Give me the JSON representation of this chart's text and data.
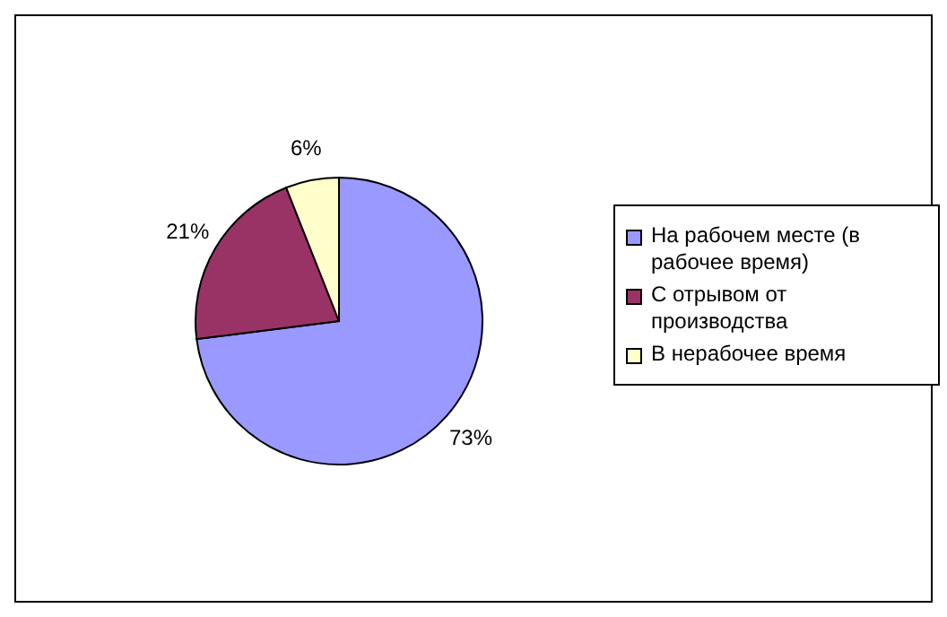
{
  "chart_data": {
    "type": "pie",
    "categories": [
      "На рабочем месте (в рабочее время)",
      "С отрывом от производства",
      "В нерабочее время"
    ],
    "values": [
      73,
      21,
      6
    ],
    "colors": [
      "#9999ff",
      "#993366",
      "#ffffcc"
    ],
    "value_labels": [
      "73%",
      "21%",
      "6%"
    ],
    "legend": "right"
  }
}
